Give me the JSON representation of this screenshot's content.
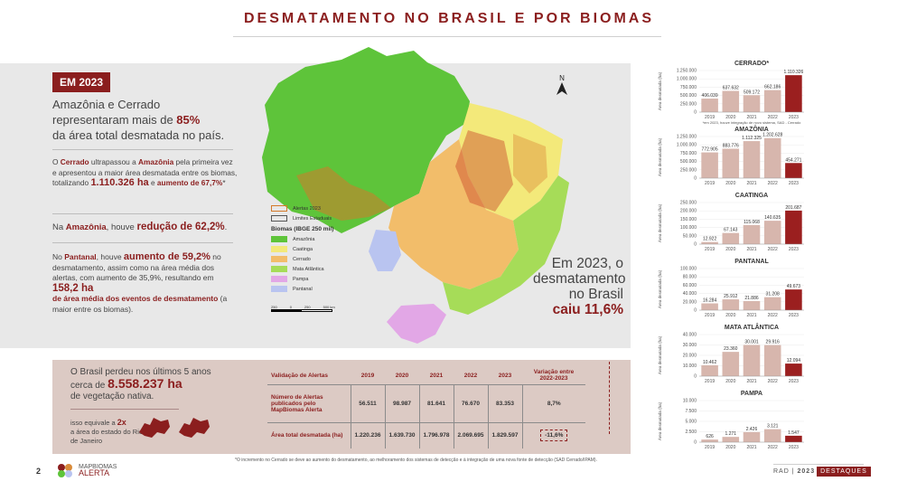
{
  "title": "DESMATAMENTO NO BRASIL E POR BIOMAS",
  "tag": "EM 2023",
  "lead": {
    "line1": "Amazônia e Cerrado",
    "line2a": "representaram mais de ",
    "line2b": "85%",
    "line3": "da área total desmatada no país."
  },
  "para1": {
    "a": "O ",
    "b": "Cerrado",
    "c": " ultrapassou a ",
    "d": "Amazônia",
    "e": " pela primeira vez e apresentou a maior área desmatada entre os biomas, totalizando ",
    "f": "1.110.326 ha",
    "g": " e ",
    "h": "aumento de 67,7%",
    "i": "*"
  },
  "para2": {
    "a": "Na ",
    "b": "Amazônia",
    "c": ", houve ",
    "d": "redução de 62,2%",
    "e": "."
  },
  "para3": {
    "a": "No ",
    "b": "Pantanal",
    "c": ", houve ",
    "d": "aumento de 59,2%",
    "e": " no desmatamento, assim como na área média dos alertas, com aumento de 35,9%, resultando em ",
    "f": "158,2 ha",
    "g": "de área média dos eventos de desmatamento",
    "h": " (a maior entre os biomas)."
  },
  "legend": {
    "alerts": "Alertas 2023",
    "limits": "Limites Estaduais",
    "header": "Biomas (IBGE 250 mil)",
    "items": [
      {
        "label": "Amazônia",
        "color": "#5ec43a"
      },
      {
        "label": "Caatinga",
        "color": "#f3e97a"
      },
      {
        "label": "Cerrado",
        "color": "#f2bd6a"
      },
      {
        "label": "Mata Atlântica",
        "color": "#a6dc58"
      },
      {
        "label": "Pampa",
        "color": "#e2a7e6"
      },
      {
        "label": "Pantanal",
        "color": "#b9c4f0"
      }
    ],
    "scale": [
      "250",
      "0",
      "250",
      "500 km"
    ]
  },
  "north": "N",
  "callout": {
    "a": "Em 2023, o",
    "b": "desmatamento",
    "c": "no Brasil",
    "d": "caiu 11,6%"
  },
  "pink": {
    "a": "O Brasil perdeu nos últimos 5 anos",
    "b": "cerca de ",
    "c": "8.558.237 ha",
    "d": "de vegetação nativa.",
    "e": "isso equivale a ",
    "f": "2x",
    "g": "a área do estado do Rio de Janeiro"
  },
  "table": {
    "headers": [
      "Validação de Alertas",
      "2019",
      "2020",
      "2021",
      "2022",
      "2023",
      "Variação entre 2022-2023"
    ],
    "rows": [
      {
        "label": "Número de Alertas publicados pelo MapBiomas Alerta",
        "values": [
          "56.511",
          "98.987",
          "81.641",
          "76.670",
          "83.353"
        ],
        "variation": "8,7%"
      },
      {
        "label": "Área total desmatada (ha)",
        "values": [
          "1.220.236",
          "1.639.730",
          "1.796.978",
          "2.069.695",
          "1.829.597"
        ],
        "variation": "-11,6%"
      }
    ]
  },
  "footnote": "*O incremento no Cerrado se deve ao aumento do desmatamento, ao melhoramento dos sistemas de detecção e à integração de uma nova fonte de detecção (SAD Cerrado/IPAM).",
  "footer": {
    "page": "2",
    "logo_top": "MAPBIOMAS",
    "logo_bottom": "ALERTA",
    "rad": "RAD",
    "sep": "|",
    "year": "2023",
    "badge": "DESTAQUES"
  },
  "colors": {
    "accent": "#8b1e1e",
    "bar": "#d7b6ad",
    "bar_highlight": "#9b1f1f"
  },
  "chart_data": [
    {
      "type": "bar",
      "title": "CERRADO*",
      "categories": [
        "2019",
        "2020",
        "2021",
        "2022",
        "2023"
      ],
      "values": [
        406039,
        637632,
        509172,
        662186,
        1110326
      ],
      "labels": [
        "406.039",
        "637.632",
        "509.172",
        "662.186",
        "1.110.326"
      ],
      "ylim": [
        0,
        1250000
      ],
      "yticks": [
        "0",
        "250.000",
        "500.000",
        "750.000",
        "1.000.000",
        "1.250.000"
      ],
      "ylabel": "Área desmatada (ha)",
      "note": "*em 2023, houve integração de novo sistema, SAD - Cerrado"
    },
    {
      "type": "bar",
      "title": "AMAZÔNIA",
      "categories": [
        "2019",
        "2020",
        "2021",
        "2022",
        "2023"
      ],
      "values": [
        772905,
        883776,
        1112325,
        1202628,
        454271
      ],
      "labels": [
        "772.905",
        "883.776",
        "1.112.325",
        "1.202.628",
        "454.271"
      ],
      "ylim": [
        0,
        1250000
      ],
      "yticks": [
        "0",
        "250.000",
        "500.000",
        "750.000",
        "1.000.000",
        "1.250.000"
      ],
      "ylabel": "Área desmatada (ha)"
    },
    {
      "type": "bar",
      "title": "CAATINGA",
      "categories": [
        "2019",
        "2020",
        "2021",
        "2022",
        "2023"
      ],
      "values": [
        12922,
        67143,
        115068,
        140635,
        201687
      ],
      "labels": [
        "12.922",
        "67.143",
        "115.068",
        "140.635",
        "201.687"
      ],
      "ylim": [
        0,
        250000
      ],
      "yticks": [
        "0",
        "50.000",
        "100.000",
        "150.000",
        "200.000",
        "250.000"
      ],
      "ylabel": "Área desmatada (ha)"
    },
    {
      "type": "bar",
      "title": "PANTANAL",
      "categories": [
        "2019",
        "2020",
        "2021",
        "2022",
        "2023"
      ],
      "values": [
        16284,
        25912,
        21886,
        31208,
        49673
      ],
      "labels": [
        "16.284",
        "25.912",
        "21.886",
        "31.208",
        "49.673"
      ],
      "ylim": [
        0,
        100000
      ],
      "yticks": [
        "0",
        "20.000",
        "40.000",
        "60.000",
        "80.000",
        "100.000"
      ],
      "ylabel": "Área desmatada (ha)"
    },
    {
      "type": "bar",
      "title": "MATA ATLÂNTICA",
      "categories": [
        "2019",
        "2020",
        "2021",
        "2022",
        "2023"
      ],
      "values": [
        10462,
        23360,
        30001,
        29916,
        12094
      ],
      "labels": [
        "10.462",
        "23.360",
        "30.001",
        "29.916",
        "12.094"
      ],
      "ylim": [
        0,
        40000
      ],
      "yticks": [
        "0",
        "10.000",
        "20.000",
        "30.000",
        "40.000"
      ],
      "ylabel": "Área desmatada (ha)"
    },
    {
      "type": "bar",
      "title": "PAMPA",
      "categories": [
        "2019",
        "2020",
        "2021",
        "2022",
        "2023"
      ],
      "values": [
        626,
        1271,
        2426,
        3121,
        1547
      ],
      "labels": [
        "626",
        "1.271",
        "2.426",
        "3.121",
        "1.547"
      ],
      "ylim": [
        0,
        10000
      ],
      "yticks": [
        "0",
        "2.500",
        "5.000",
        "7.500",
        "10.000"
      ],
      "ylabel": "Área desmatada (ha)"
    }
  ]
}
